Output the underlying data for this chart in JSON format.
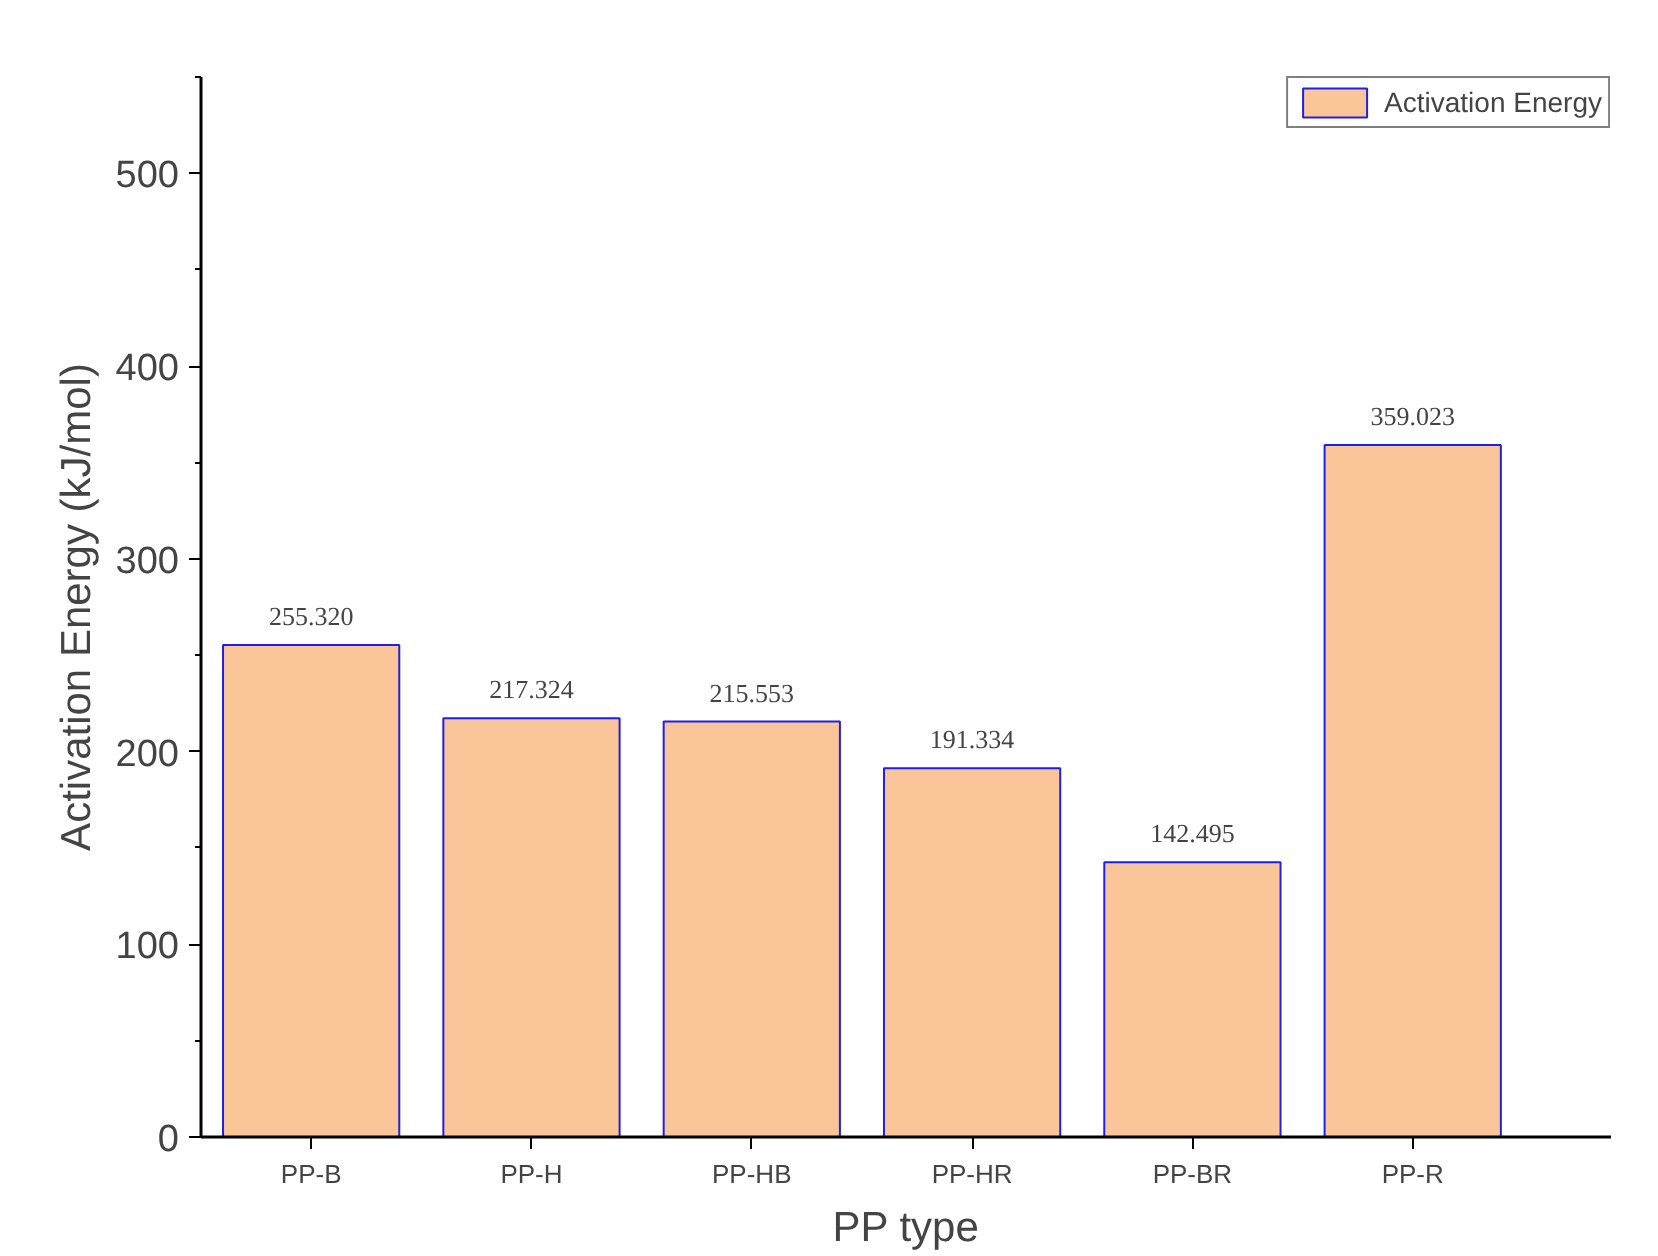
{
  "chart_data": {
    "type": "bar",
    "xlabel": "PP type",
    "ylabel": "Activation Energy (kJ/mol)",
    "categories": [
      "PP-B",
      "PP-H",
      "PP-HB",
      "PP-HR",
      "PP-BR",
      "PP-R"
    ],
    "series": [
      {
        "name": "Activation Energy",
        "color": "#fac699",
        "values": [
          255.32,
          217.324,
          215.553,
          191.334,
          142.495,
          359.023
        ],
        "value_labels": [
          "255.320",
          "217.324",
          "215.553",
          "191.334",
          "142.495",
          "359.023"
        ]
      }
    ],
    "ylim": [
      0,
      550
    ],
    "yticks": [
      0,
      100,
      200,
      300,
      400,
      500
    ],
    "grid": false,
    "legend": "top right"
  }
}
